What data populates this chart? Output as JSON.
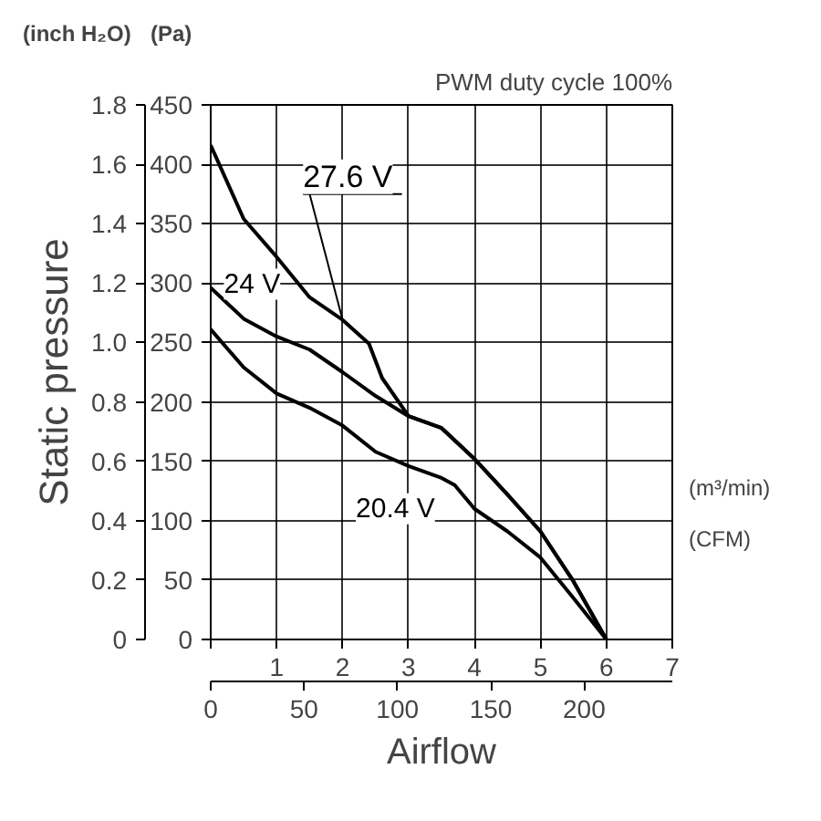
{
  "chart_data": {
    "type": "line",
    "title": "PWM duty cycle 100%",
    "y2label": "Static pressure",
    "x2label": "Airflow",
    "annotations": [
      "(inch H₂O)",
      "(Pa)",
      "(m³/min)",
      "(CFM)"
    ],
    "x": [
      0,
      0.5,
      1,
      1.5,
      2,
      2.5,
      3,
      3.5,
      4,
      4.5,
      5,
      5.5,
      6
    ],
    "series": [
      {
        "name": "27.6 V",
        "color": "#000000",
        "x": [
          0,
          0.5,
          1,
          1.5,
          2,
          2.4,
          2.6,
          3,
          3.5,
          4,
          4.5,
          5,
          5.5,
          6
        ],
        "values": [
          416,
          354,
          322,
          288,
          269,
          249,
          220,
          188,
          178,
          152,
          122,
          91,
          49,
          0
        ]
      },
      {
        "name": "24 V",
        "color": "#000000",
        "values": [
          296,
          270,
          255,
          244,
          225,
          205,
          188,
          178,
          152,
          122,
          91,
          49,
          0
        ]
      },
      {
        "name": "20.4 V",
        "color": "#000000",
        "x": [
          0,
          0.5,
          1,
          1.5,
          2,
          2.5,
          3,
          3.5,
          3.7,
          4,
          4.5,
          5,
          5.5,
          6
        ],
        "values": [
          261,
          229,
          207,
          195,
          180,
          158,
          146,
          136,
          130,
          110,
          91,
          69,
          35,
          0
        ]
      }
    ],
    "xlim": [
      0,
      7
    ],
    "xticks": [
      {
        "value": 0,
        "label": null
      },
      1,
      2,
      3,
      4,
      5,
      6,
      7
    ],
    "ylim": [
      0,
      450
    ],
    "yticks": [
      0,
      50,
      100,
      150,
      200,
      250,
      300,
      350,
      400,
      450
    ],
    "y2lim": [
      0,
      1.8
    ],
    "y2ticks": [
      0,
      0.2,
      0.4,
      0.6,
      0.8,
      {
        "value": 1.0,
        "label": "1.0"
      },
      1.2,
      1.4,
      1.6,
      1.8
    ],
    "x2lim": [
      0,
      247.2
    ],
    "x2ticks": [
      0,
      50,
      100,
      150,
      200
    ],
    "grid": true,
    "marker": "none",
    "line_style": "solid"
  }
}
